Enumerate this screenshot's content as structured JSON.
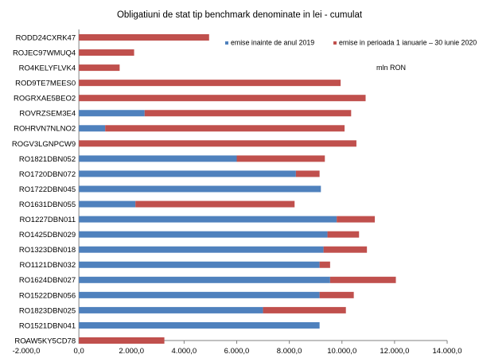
{
  "chart_data": {
    "type": "bar",
    "orientation": "horizontal",
    "stacked": true,
    "title": "Obligatiuni de stat tip benchmark denominate in lei  - cumulat",
    "unit_label": "mln RON",
    "categories": [
      "RODD24CXRK47",
      "ROJEC97WMUQ4",
      "RO4KELYFLVK4",
      "ROD9TE7MEES0",
      "ROGRXAE5BEO2",
      "ROVRZSEM3E4",
      "ROHRVN7NLNO2",
      "ROGV3LGNPCW9",
      "RO1821DBN052",
      "RO1720DBN072",
      "RO1722DBN045",
      "RO1631DBN055",
      "RO1227DBN011",
      "RO1425DBN029",
      "RO1323DBN018",
      "RO1121DBN032",
      "RO1624DBN027",
      "RO1522DBN056",
      "RO1823DBN025",
      "RO1521DBN041",
      "ROAW5KY5CD78"
    ],
    "series": [
      {
        "name": "emise inainte de anul 2019",
        "color": "#4F81BD",
        "values": [
          0,
          0,
          0,
          0,
          0,
          2500,
          1000,
          0,
          6000,
          8250,
          9200,
          2150,
          9800,
          9450,
          9300,
          9150,
          9550,
          9150,
          7000,
          9150,
          0
        ]
      },
      {
        "name": "emise in perioada 1 ianuarie – 30 iunie 2020",
        "color": "#C0504D",
        "values": [
          4950,
          2100,
          1550,
          9950,
          10900,
          7850,
          9100,
          10550,
          3350,
          900,
          0,
          6050,
          1450,
          1200,
          1650,
          400,
          2500,
          1300,
          3150,
          0,
          3250
        ]
      }
    ],
    "xlim": [
      -2000,
      14000
    ],
    "xticks": [
      "-2.000,0",
      "0,0",
      "2.000,0",
      "4.000,0",
      "6.000,0",
      "8.000,0",
      "10.000,0",
      "12.000,0",
      "14.000,0"
    ],
    "grid": false,
    "legend_position": "top-right"
  }
}
